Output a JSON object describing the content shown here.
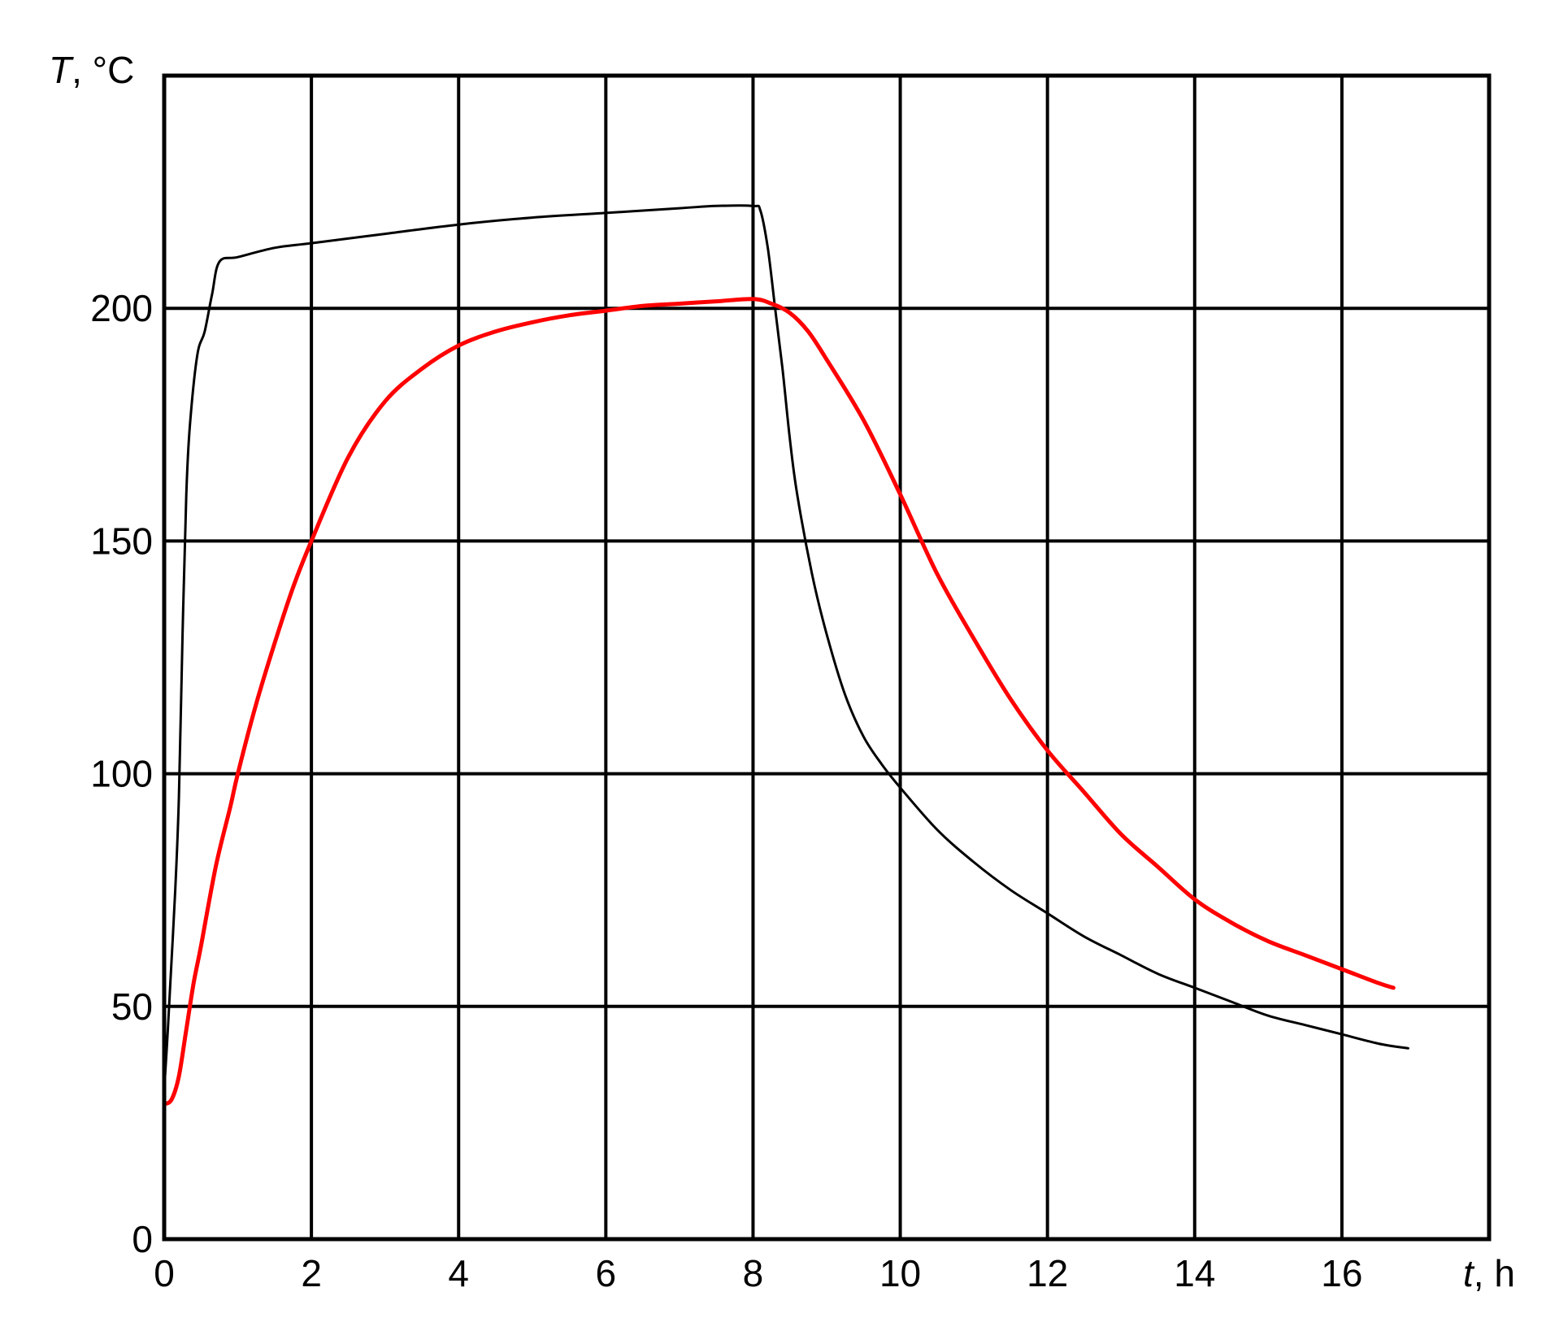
{
  "chart_data": {
    "type": "line",
    "title": "",
    "xlabel": {
      "symbol": "t",
      "unit": ", h"
    },
    "ylabel": {
      "symbol": "T",
      "unit": ", °C"
    },
    "xlim": [
      0,
      18
    ],
    "ylim": [
      0,
      250
    ],
    "x_ticks": [
      0,
      2,
      4,
      6,
      8,
      10,
      12,
      14,
      16
    ],
    "x_tick_labels": [
      "0",
      "2",
      "4",
      "6",
      "8",
      "10",
      "12",
      "14",
      "16"
    ],
    "y_ticks": [
      0,
      50,
      100,
      150,
      200
    ],
    "y_tick_labels": [
      "0",
      "50",
      "100",
      "150",
      "200"
    ],
    "grid": true,
    "series": [
      {
        "color": "#000000",
        "x": [
          0.0,
          0.05,
          0.1,
          0.15,
          0.2,
          0.25,
          0.3,
          0.35,
          0.45,
          0.55,
          0.65,
          0.75,
          1.0,
          1.5,
          2.0,
          3.0,
          4.0,
          5.0,
          6.0,
          7.0,
          7.5,
          8.0,
          8.1,
          8.2,
          8.3,
          8.4,
          8.5,
          8.6,
          8.8,
          9.0,
          9.25,
          9.5,
          9.75,
          10.0,
          10.5,
          11.0,
          11.5,
          12.0,
          12.5,
          13.0,
          13.5,
          14.0,
          14.5,
          15.0,
          15.5,
          16.0,
          16.5,
          16.9
        ],
        "y": [
          32,
          45,
          60,
          75,
          95,
          130,
          160,
          175,
          190,
          195,
          203,
          210,
          211,
          213,
          214,
          216,
          218,
          219.5,
          220.5,
          221.5,
          222,
          222,
          221,
          213,
          200,
          187,
          172,
          160,
          143,
          130,
          117,
          108,
          102,
          97,
          88,
          81,
          75,
          70,
          65,
          61,
          57,
          54,
          51,
          48,
          46,
          44,
          42,
          41
        ]
      },
      {
        "color": "#ff0000",
        "x": [
          0.0,
          0.1,
          0.2,
          0.3,
          0.4,
          0.5,
          0.7,
          0.9,
          1.0,
          1.25,
          1.5,
          1.75,
          2.0,
          2.5,
          3.0,
          3.5,
          4.0,
          4.5,
          5.0,
          5.5,
          6.0,
          6.5,
          7.0,
          7.5,
          8.0,
          8.25,
          8.5,
          8.75,
          9.0,
          9.5,
          10.0,
          10.5,
          11.0,
          11.5,
          12.0,
          12.5,
          13.0,
          13.5,
          14.0,
          14.5,
          15.0,
          15.5,
          16.0,
          16.5,
          16.7
        ],
        "y": [
          29,
          30,
          35,
          45,
          55,
          63,
          80,
          93,
          100,
          115,
          128,
          140,
          150,
          168,
          180,
          187,
          192,
          195,
          197,
          198.5,
          199.5,
          200.5,
          201,
          201.5,
          202,
          201,
          199,
          195,
          189,
          176,
          160,
          143,
          129,
          116,
          105,
          96,
          87,
          80,
          73,
          68,
          64,
          61,
          58,
          55,
          54
        ]
      }
    ]
  }
}
